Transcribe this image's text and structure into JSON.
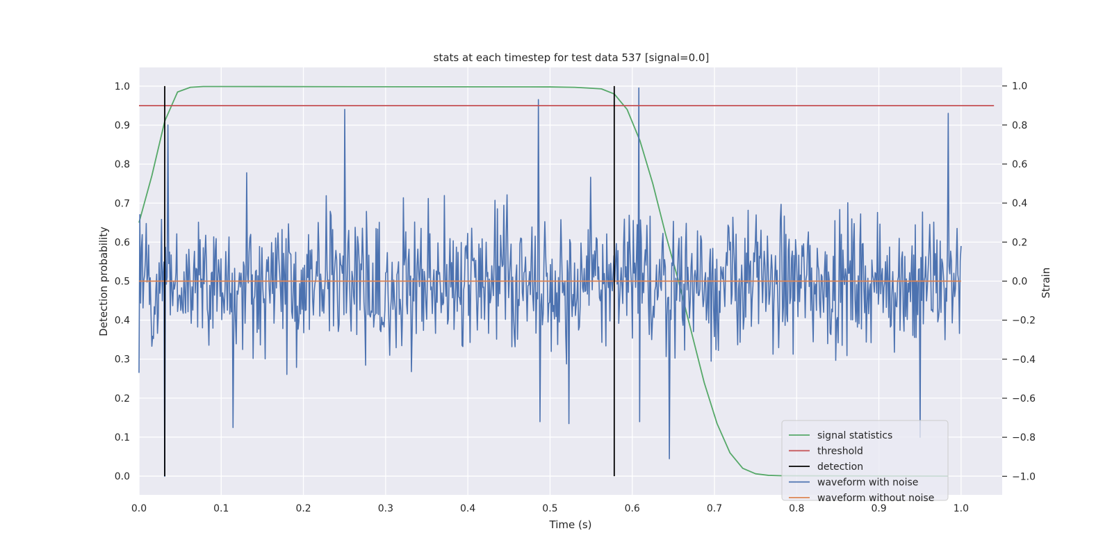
{
  "chart_data": {
    "type": "line",
    "title": "stats at each timestep for test data 537 [signal=0.0]",
    "xlabel": "Time (s)",
    "ylabel": "Detection probability",
    "ylabel_right": "Strain",
    "xlim": [
      0.0,
      1.05
    ],
    "ylim": [
      -0.048,
      1.048
    ],
    "ylim_right": [
      -1.095,
      1.095
    ],
    "xticks": [
      "0.0",
      "0.1",
      "0.2",
      "0.3",
      "0.4",
      "0.5",
      "0.6",
      "0.7",
      "0.8",
      "0.9",
      "1.0"
    ],
    "yticks": [
      "0.0",
      "0.1",
      "0.2",
      "0.3",
      "0.4",
      "0.5",
      "0.6",
      "0.7",
      "0.8",
      "0.9",
      "1.0"
    ],
    "yticks_right": [
      "−1.0",
      "−0.8",
      "−0.6",
      "−0.4",
      "−0.2",
      "0.0",
      "0.2",
      "0.4",
      "0.6",
      "0.8",
      "1.0"
    ],
    "grid": true,
    "legend_position": "lower-right",
    "colors": {
      "background": "#eaeaf2",
      "grid": "#ffffff",
      "signal": "#55a868",
      "threshold": "#c44e52",
      "detection": "#000000",
      "noisy": "#4c72b0",
      "clean": "#dd8452"
    },
    "series": [
      {
        "name": "signal statistics",
        "axis": "left",
        "x": [
          0.0,
          0.0156,
          0.0313,
          0.0469,
          0.0625,
          0.0781,
          0.0938,
          0.5,
          0.53,
          0.547,
          0.5625,
          0.5781,
          0.5938,
          0.6094,
          0.625,
          0.6406,
          0.6563,
          0.6719,
          0.6875,
          0.7031,
          0.7188,
          0.7344,
          0.75,
          0.7656,
          0.7813,
          0.9844
        ],
        "y": [
          0.65,
          0.77,
          0.91,
          0.985,
          0.997,
          0.999,
          0.999,
          0.998,
          0.997,
          0.995,
          0.993,
          0.98,
          0.94,
          0.86,
          0.75,
          0.62,
          0.5,
          0.37,
          0.24,
          0.135,
          0.06,
          0.02,
          0.006,
          0.002,
          0.001,
          0.0
        ]
      },
      {
        "name": "threshold",
        "axis": "left",
        "x": [
          0.0,
          1.04
        ],
        "y": [
          0.95,
          0.95
        ]
      },
      {
        "name": "detection",
        "axis": "left",
        "segments": [
          {
            "x": 0.0313,
            "y0": 0.0,
            "y1": 1.0
          },
          {
            "x": 0.5781,
            "y0": 0.0,
            "y1": 1.0
          }
        ]
      },
      {
        "name": "waveform with noise",
        "axis": "right",
        "x_start": 0.0,
        "x_end": 1.0,
        "n_points": 1024,
        "landmarks": [
          {
            "x": 0.0,
            "y": -0.47
          },
          {
            "x": 0.0313,
            "y": -1.0
          },
          {
            "x": 0.0352,
            "y": 0.8
          },
          {
            "x": 0.1143,
            "y": -0.75
          },
          {
            "x": 0.25,
            "y": 0.88
          },
          {
            "x": 0.4863,
            "y": 0.93
          },
          {
            "x": 0.4873,
            "y": -0.72
          },
          {
            "x": 0.5225,
            "y": -0.73
          },
          {
            "x": 0.6084,
            "y": 0.99
          },
          {
            "x": 0.6094,
            "y": -0.72
          },
          {
            "x": 0.6455,
            "y": -0.91
          },
          {
            "x": 0.9502,
            "y": -0.8
          },
          {
            "x": 0.9844,
            "y": 0.86
          },
          {
            "x": 1.0,
            "y": 0.18
          }
        ]
      },
      {
        "name": "waveform without noise",
        "axis": "right",
        "x": [
          0.0,
          1.0
        ],
        "y": [
          0.0,
          0.0
        ]
      }
    ],
    "legend": [
      "signal statistics",
      "threshold",
      "detection",
      "waveform with noise",
      "waveform without noise"
    ]
  }
}
